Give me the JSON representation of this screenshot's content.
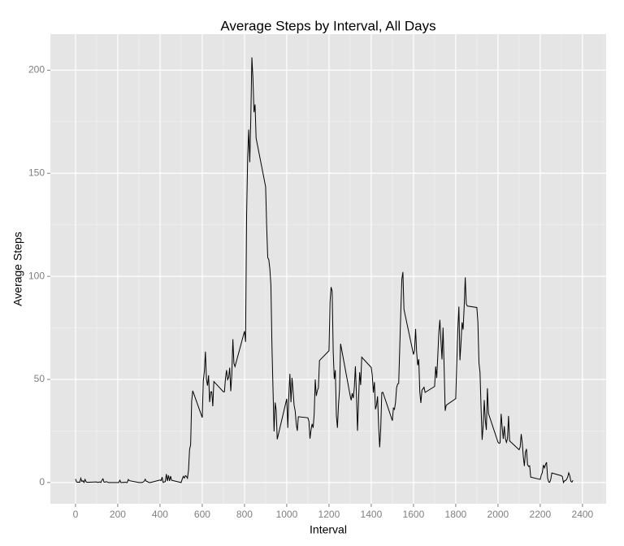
{
  "chart_data": {
    "type": "line",
    "title": "Average Steps by Interval, All Days",
    "xlabel": "Interval",
    "ylabel": "Average Steps",
    "color": "#000000",
    "x": [
      0,
      5,
      10,
      15,
      20,
      25,
      30,
      35,
      40,
      45,
      50,
      55,
      100,
      105,
      110,
      115,
      120,
      125,
      130,
      135,
      140,
      145,
      150,
      155,
      200,
      205,
      210,
      215,
      220,
      225,
      230,
      235,
      240,
      245,
      250,
      255,
      300,
      305,
      310,
      315,
      320,
      325,
      330,
      335,
      340,
      345,
      350,
      355,
      400,
      405,
      410,
      415,
      420,
      425,
      430,
      435,
      440,
      445,
      450,
      455,
      500,
      505,
      510,
      515,
      520,
      525,
      530,
      535,
      540,
      545,
      550,
      555,
      600,
      605,
      610,
      615,
      620,
      625,
      630,
      635,
      640,
      645,
      650,
      655,
      700,
      705,
      710,
      715,
      720,
      725,
      730,
      735,
      740,
      745,
      750,
      755,
      800,
      805,
      810,
      815,
      820,
      825,
      830,
      835,
      840,
      845,
      850,
      855,
      900,
      905,
      910,
      915,
      920,
      925,
      930,
      935,
      940,
      945,
      950,
      955,
      1000,
      1005,
      1010,
      1015,
      1020,
      1025,
      1030,
      1035,
      1040,
      1045,
      1050,
      1055,
      1100,
      1105,
      1110,
      1115,
      1120,
      1125,
      1130,
      1135,
      1140,
      1145,
      1150,
      1155,
      1200,
      1205,
      1210,
      1215,
      1220,
      1225,
      1230,
      1235,
      1240,
      1245,
      1250,
      1255,
      1300,
      1305,
      1310,
      1315,
      1320,
      1325,
      1330,
      1335,
      1340,
      1345,
      1350,
      1355,
      1400,
      1405,
      1410,
      1415,
      1420,
      1425,
      1430,
      1435,
      1440,
      1445,
      1450,
      1455,
      1500,
      1505,
      1510,
      1515,
      1520,
      1525,
      1530,
      1535,
      1540,
      1545,
      1550,
      1555,
      1600,
      1605,
      1610,
      1615,
      1620,
      1625,
      1630,
      1635,
      1640,
      1645,
      1650,
      1655,
      1700,
      1705,
      1710,
      1715,
      1720,
      1725,
      1730,
      1735,
      1740,
      1745,
      1750,
      1755,
      1800,
      1805,
      1810,
      1815,
      1820,
      1825,
      1830,
      1835,
      1840,
      1845,
      1850,
      1855,
      1900,
      1905,
      1910,
      1915,
      1920,
      1925,
      1930,
      1935,
      1940,
      1945,
      1950,
      1955,
      2000,
      2005,
      2010,
      2015,
      2020,
      2025,
      2030,
      2035,
      2040,
      2045,
      2050,
      2055,
      2100,
      2105,
      2110,
      2115,
      2120,
      2125,
      2130,
      2135,
      2140,
      2145,
      2150,
      2155,
      2200,
      2205,
      2210,
      2215,
      2220,
      2225,
      2230,
      2235,
      2240,
      2245,
      2250,
      2255,
      2300,
      2305,
      2310,
      2315,
      2320,
      2325,
      2330,
      2335,
      2340,
      2345,
      2350,
      2355
    ],
    "values": [
      1.7,
      0.3,
      0.1,
      0.2,
      0.1,
      2.1,
      0.5,
      0.9,
      0,
      1.5,
      0.3,
      0.1,
      0.3,
      0,
      0.2,
      0.3,
      0,
      1.1,
      1.8,
      0.2,
      0.2,
      0.4,
      0.3,
      0,
      0,
      0,
      1.1,
      0,
      0,
      0.1,
      0,
      0.2,
      0,
      0,
      1.5,
      0.9,
      0,
      0,
      0,
      0,
      0.2,
      0.6,
      1.6,
      0.6,
      0.5,
      0.1,
      0,
      0,
      1.2,
      0.9,
      2.6,
      0,
      0.3,
      0.4,
      4.1,
      0.7,
      3.5,
      0.8,
      3.1,
      1.1,
      0,
      1.6,
      3,
      2.2,
      3.3,
      3,
      2.1,
      6,
      16,
      18.3,
      39.5,
      44.5,
      31.5,
      49.3,
      53.8,
      63.5,
      50,
      47,
      52,
      39,
      44,
      44,
      37,
      49,
      44,
      44,
      50.5,
      54.5,
      49.9,
      51,
      55.7,
      44.3,
      52.3,
      69.5,
      57.8,
      56.2,
      73.4,
      68.2,
      129.4,
      157.5,
      171.2,
      155.4,
      177.3,
      206.2,
      195.9,
      179.6,
      183.4,
      167,
      143.5,
      124,
      109.1,
      108.1,
      103.7,
      95.9,
      66.2,
      45.2,
      24.8,
      38.8,
      34.98,
      21,
      40.6,
      26.5,
      42.4,
      52.7,
      38.9,
      50.8,
      44.3,
      37.4,
      34.7,
      28.3,
      25.1,
      31.9,
      31.4,
      29.7,
      21.3,
      25.5,
      28.4,
      26.5,
      33.4,
      50,
      42,
      44.6,
      46,
      59.2,
      63.9,
      87.7,
      94.8,
      92.8,
      63.4,
      50.2,
      54.5,
      32.4,
      26.5,
      37.7,
      45.1,
      67.3,
      42.3,
      39.9,
      43.3,
      40.98,
      46.2,
      56.4,
      42.8,
      25.1,
      39.97,
      53.5,
      47.3,
      60.8,
      55.8,
      51.96,
      43.6,
      48.7,
      35.5,
      37.5,
      41.8,
      27.5,
      17.1,
      26.1,
      43.6,
      43.8,
      30,
      36.1,
      35.5,
      38.8,
      45.96,
      47.75,
      48.1,
      65.3,
      82.9,
      98.7,
      102.1,
      83.96,
      62.1,
      64.1,
      74.5,
      63.2,
      56.9,
      59.8,
      43.9,
      38.6,
      44.7,
      45.5,
      46.2,
      43.7,
      46.6,
      56.3,
      50.7,
      61.2,
      72.7,
      78.9,
      68.9,
      59.7,
      75.1,
      56.5,
      34.8,
      37.5,
      40.7,
      58,
      74.7,
      85.3,
      59.3,
      67.8,
      77.7,
      74.2,
      85.3,
      99.5,
      86.6,
      85.6,
      84.9,
      77.8,
      58,
      53.4,
      36.3,
      20.7,
      27.4,
      40,
      30.2,
      25.5,
      45.7,
      33.5,
      19.6,
      19,
      19.3,
      33.3,
      26.8,
      21.2,
      27.3,
      21.3,
      19.5,
      21.3,
      32.3,
      20.2,
      15.9,
      17.2,
      23.5,
      19.2,
      12.5,
      8,
      14.7,
      16.3,
      8.7,
      7.8,
      8.1,
      2.6,
      1.5,
      3.7,
      4.8,
      8.5,
      7.1,
      8.7,
      9.8,
      2.2,
      0.3,
      0.1,
      1.6,
      4.6,
      3.3,
      2.8,
      0,
      0.8,
      0.96,
      1.6,
      2.6,
      4.7,
      3.3,
      0.6,
      0.2,
      1.1
    ],
    "xlim": [
      -119,
      2512
    ],
    "xticks": [
      0,
      200,
      400,
      600,
      800,
      1000,
      1200,
      1400,
      1600,
      1800,
      2000,
      2200,
      2400
    ],
    "xminorticks": [
      100,
      300,
      500,
      700,
      900,
      1100,
      1300,
      1500,
      1700,
      1900,
      2100,
      2300,
      2500
    ],
    "ylim": [
      -10.3,
      217.5
    ],
    "yticks": [
      0,
      50,
      100,
      150,
      200
    ],
    "yminorticks": [
      25,
      75,
      125,
      175
    ],
    "grid": true
  }
}
